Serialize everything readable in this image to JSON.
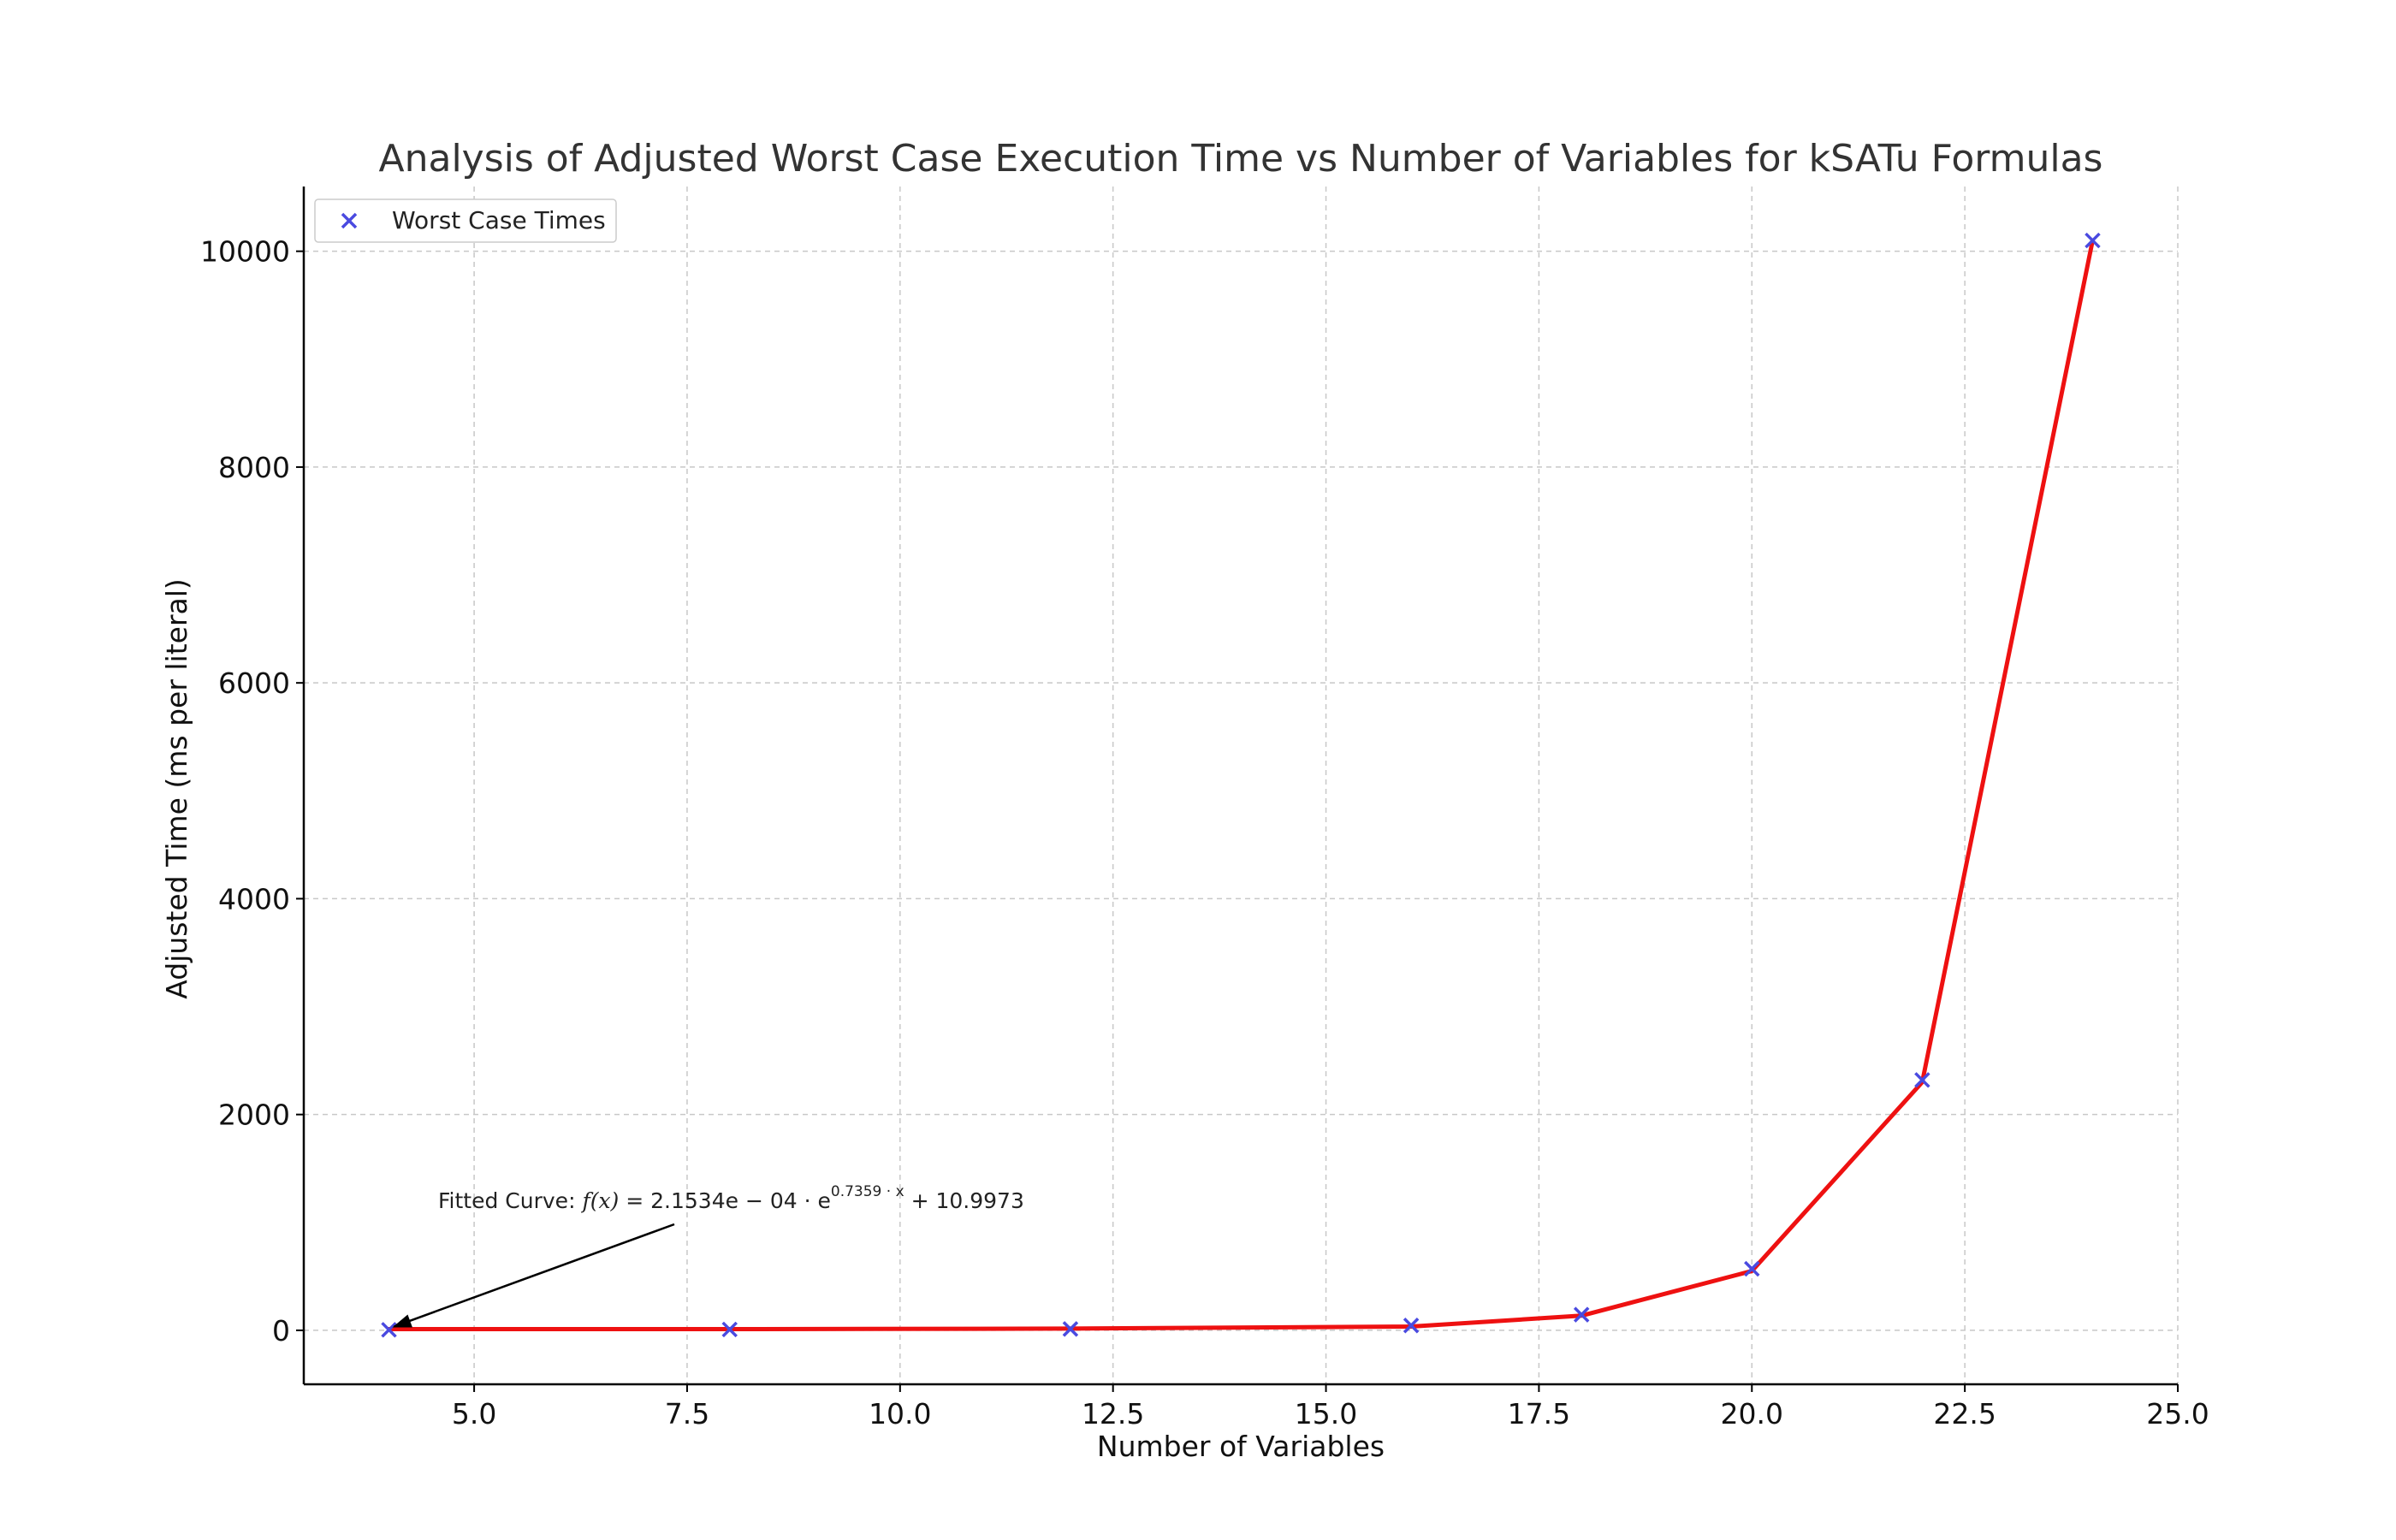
{
  "chart_data": {
    "type": "line",
    "title": "Analysis of Adjusted Worst Case Execution Time vs Number of Variables for kSATu Formulas",
    "xlabel": "Number of Variables",
    "ylabel": "Adjusted Time (ms per literal)",
    "xlim": [
      3,
      25
    ],
    "ylim": [
      -500,
      10600
    ],
    "x_ticks": [
      5.0,
      7.5,
      10.0,
      12.5,
      15.0,
      17.5,
      20.0,
      22.5,
      25.0
    ],
    "x_tick_labels": [
      "5.0",
      "7.5",
      "10.0",
      "12.5",
      "15.0",
      "17.5",
      "20.0",
      "22.5",
      "25.0"
    ],
    "y_ticks": [
      0,
      2000,
      4000,
      6000,
      8000,
      10000
    ],
    "y_tick_labels": [
      "0",
      "2000",
      "4000",
      "6000",
      "8000",
      "10000"
    ],
    "grid": true,
    "legend_position": "top-left",
    "series": [
      {
        "name": "Worst Case Times",
        "kind": "scatter",
        "marker": "x",
        "color": "#4a4ae0",
        "x": [
          4,
          8,
          12,
          16,
          18,
          20,
          22,
          24
        ],
        "y": [
          5,
          8,
          12,
          45,
          145,
          570,
          2320,
          10100
        ]
      },
      {
        "kind": "line",
        "color": "#ee1111",
        "x": [
          4,
          8,
          12,
          16,
          18,
          20,
          22,
          24
        ],
        "y": [
          11,
          11,
          16,
          35,
          136,
          550,
          2300,
          10100
        ]
      }
    ],
    "annotation": {
      "prefix": "Fitted Curve: ",
      "formula_lhs": "f(x)",
      "formula_eq": " = 2.1534e − 04 · e",
      "formula_exp": "0.7359 · x",
      "formula_tail": " + 10.9973",
      "point": [
        4,
        11
      ]
    }
  }
}
